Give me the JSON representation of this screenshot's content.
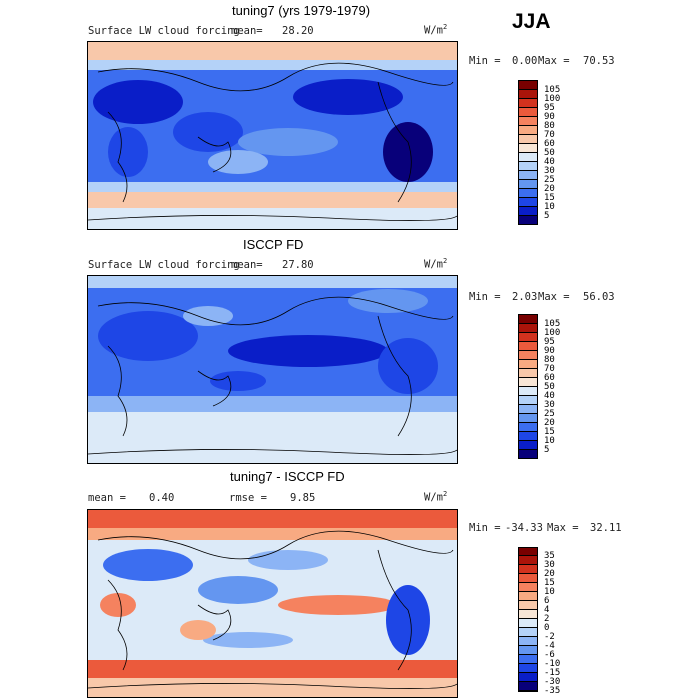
{
  "season": "JJA",
  "colors": {
    "scale": [
      "#08007a",
      "#0a1ec8",
      "#1e46e6",
      "#3c6ef0",
      "#6496f0",
      "#8cb4f5",
      "#b4d2f8",
      "#dceaf8",
      "#f8e6d6",
      "#f8c8aa",
      "#f8aa82",
      "#f5825f",
      "#eb5a3c",
      "#d2321e",
      "#aa140a",
      "#780000"
    ],
    "land_outline": "#000000"
  },
  "panels": [
    {
      "title": "tuning7 (yrs 1979-1979)",
      "variable": "Surface LW cloud forcing",
      "mean_label": "mean=",
      "mean_value": "28.20",
      "units_base": "W/m",
      "units_exp": "2",
      "min_label": "Min =",
      "min_value": "0.00",
      "max_label": "Max =",
      "max_value": "70.53",
      "colorbar_labels": [
        "105",
        "100",
        "95",
        "90",
        "80",
        "70",
        "60",
        "50",
        "40",
        "30",
        "25",
        "20",
        "15",
        "10",
        "5"
      ]
    },
    {
      "title": "ISCCP FD",
      "variable": "Surface LW cloud forcing",
      "mean_label": "mean=",
      "mean_value": "27.80",
      "units_base": "W/m",
      "units_exp": "2",
      "min_label": "Min =",
      "min_value": "2.03",
      "max_label": "Max =",
      "max_value": "56.03",
      "colorbar_labels": [
        "105",
        "100",
        "95",
        "90",
        "80",
        "70",
        "60",
        "50",
        "40",
        "30",
        "25",
        "20",
        "15",
        "10",
        "5"
      ]
    },
    {
      "title": "tuning7 - ISCCP FD",
      "mean_label": "mean =",
      "mean_value": "0.40",
      "rmse_label": "rmse =",
      "rmse_value": "9.85",
      "units_base": "W/m",
      "units_exp": "2",
      "min_label": "Min =",
      "min_value": "-34.33",
      "max_label": "Max =",
      "max_value": "32.11",
      "colorbar_labels": [
        "35",
        "30",
        "20",
        "15",
        "10",
        "6",
        "4",
        "2",
        "0",
        "-2",
        "-4",
        "-6",
        "-10",
        "-15",
        "-30",
        "-35"
      ]
    }
  ]
}
